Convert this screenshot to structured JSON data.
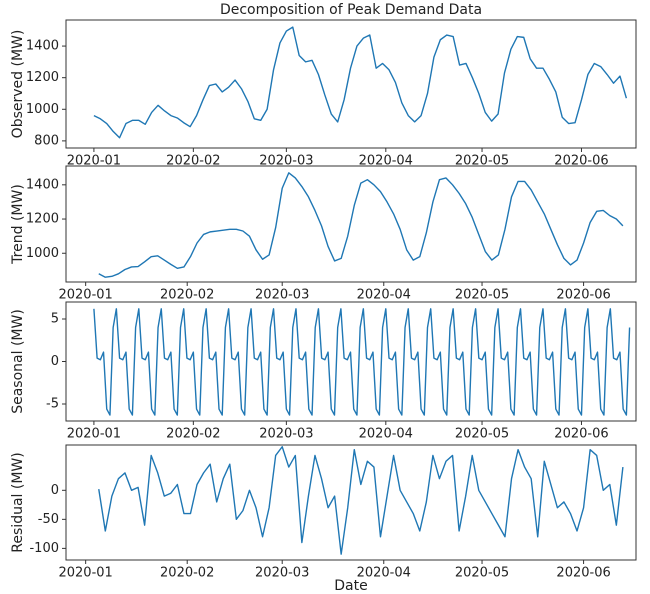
{
  "chart_data": [
    {
      "type": "line",
      "title": "Decomposition of Peak Demand Data",
      "ylabel": "Observed (MW)",
      "color": "#1f77b4",
      "x": [
        0,
        2,
        4,
        6,
        8,
        10,
        12,
        14,
        16,
        18,
        20,
        22,
        24,
        26,
        28,
        30,
        32,
        34,
        36,
        38,
        40,
        42,
        44,
        46,
        48,
        50,
        52,
        54,
        56,
        58,
        60,
        62,
        64,
        66,
        68,
        70,
        72,
        74,
        76,
        78,
        80,
        82,
        84,
        86,
        88,
        90,
        92,
        94,
        96,
        98,
        100,
        102,
        104,
        106,
        108,
        110,
        112,
        114,
        116,
        118,
        120,
        122,
        124,
        126,
        128,
        130,
        132,
        134,
        136,
        138,
        140,
        142,
        144,
        146,
        148,
        150,
        152,
        154,
        156,
        158,
        160,
        162,
        164,
        166
      ],
      "values": [
        960,
        940,
        910,
        860,
        820,
        910,
        930,
        930,
        905,
        980,
        1025,
        990,
        960,
        945,
        915,
        890,
        960,
        1060,
        1150,
        1160,
        1110,
        1140,
        1185,
        1130,
        1050,
        940,
        930,
        1000,
        1250,
        1420,
        1495,
        1520,
        1340,
        1300,
        1310,
        1220,
        1090,
        970,
        920,
        1060,
        1260,
        1400,
        1450,
        1470,
        1260,
        1290,
        1250,
        1170,
        1040,
        960,
        920,
        960,
        1100,
        1330,
        1440,
        1470,
        1460,
        1280,
        1290,
        1200,
        1100,
        980,
        925,
        970,
        1230,
        1380,
        1460,
        1455,
        1320,
        1260,
        1260,
        1190,
        1110,
        950,
        910,
        915,
        1060,
        1220,
        1290,
        1270,
        1220,
        1165,
        1210,
        1070
      ],
      "xlim": [
        -8.7,
        169
      ],
      "ylim": [
        755,
        1565
      ],
      "xticks": [
        {
          "value": 0,
          "label": "2020-01"
        },
        {
          "value": 31,
          "label": "2020-02"
        },
        {
          "value": 60,
          "label": "2020-03"
        },
        {
          "value": 91,
          "label": "2020-04"
        },
        {
          "value": 121,
          "label": "2020-05"
        },
        {
          "value": 152,
          "label": "2020-06"
        }
      ],
      "yticks": [
        800,
        1000,
        1200,
        1400
      ]
    },
    {
      "type": "line",
      "ylabel": "Trend (MW)",
      "color": "#1f77b4",
      "x": [
        0,
        2,
        4,
        6,
        8,
        10,
        12,
        14,
        16,
        18,
        20,
        22,
        24,
        26,
        28,
        30,
        32,
        34,
        36,
        38,
        40,
        42,
        44,
        46,
        48,
        50,
        52,
        54,
        56,
        58,
        60,
        62,
        64,
        66,
        68,
        70,
        72,
        74,
        76,
        78,
        80,
        82,
        84,
        86,
        88,
        90,
        92,
        94,
        96,
        98,
        100,
        102,
        104,
        106,
        108,
        110,
        112,
        114,
        116,
        118,
        120,
        122,
        124,
        126,
        128,
        130,
        132,
        134,
        136,
        138,
        140,
        142,
        144,
        146,
        148,
        150,
        152,
        154,
        156,
        158,
        160,
        162,
        164,
        166
      ],
      "values": [
        null,
        null,
        880,
        860,
        865,
        880,
        905,
        920,
        922,
        950,
        980,
        985,
        960,
        935,
        912,
        920,
        980,
        1060,
        1110,
        1125,
        1130,
        1135,
        1140,
        1140,
        1130,
        1100,
        1020,
        965,
        990,
        1150,
        1380,
        1470,
        1440,
        1390,
        1330,
        1250,
        1160,
        1040,
        955,
        970,
        1100,
        1280,
        1410,
        1430,
        1400,
        1360,
        1300,
        1230,
        1140,
        1020,
        960,
        980,
        1120,
        1300,
        1430,
        1440,
        1400,
        1350,
        1290,
        1210,
        1110,
        1010,
        960,
        990,
        1140,
        1330,
        1420,
        1420,
        1370,
        1300,
        1230,
        1140,
        1050,
        970,
        932,
        960,
        1060,
        1180,
        1245,
        1250,
        1220,
        1200,
        1160,
        null
      ],
      "xlim": [
        -6,
        168
      ],
      "ylim": [
        832,
        1510
      ],
      "xticks": [
        {
          "value": 0,
          "label": "2020-01"
        },
        {
          "value": 31,
          "label": "2020-02"
        },
        {
          "value": 60,
          "label": "2020-03"
        },
        {
          "value": 91,
          "label": "2020-04"
        },
        {
          "value": 121,
          "label": "2020-05"
        },
        {
          "value": 152,
          "label": "2020-06"
        }
      ],
      "yticks": [
        1000,
        1200,
        1400
      ]
    },
    {
      "type": "line",
      "ylabel": "Seasonal (MW)",
      "color": "#1f77b4",
      "x": [
        0,
        1,
        2,
        3,
        4,
        5,
        6,
        7,
        8,
        9,
        10,
        11,
        12,
        13,
        14,
        15,
        16,
        17,
        18,
        19,
        20,
        21,
        22,
        23,
        24,
        25,
        26,
        27,
        28,
        29,
        30,
        31,
        32,
        33,
        34,
        35,
        36,
        37,
        38,
        39,
        40,
        41,
        42,
        43,
        44,
        45,
        46,
        47,
        48,
        49,
        50,
        51,
        52,
        53,
        54,
        55,
        56,
        57,
        58,
        59,
        60,
        61,
        62,
        63,
        64,
        65,
        66,
        67,
        68,
        69,
        70,
        71,
        72,
        73,
        74,
        75,
        76,
        77,
        78,
        79,
        80,
        81,
        82,
        83,
        84,
        85,
        86,
        87,
        88,
        89,
        90,
        91,
        92,
        93,
        94,
        95,
        96,
        97,
        98,
        99,
        100,
        101,
        102,
        103,
        104,
        105,
        106,
        107,
        108,
        109,
        110,
        111,
        112,
        113,
        114,
        115,
        116,
        117,
        118,
        119,
        120,
        121,
        122,
        123,
        124,
        125,
        126,
        127,
        128,
        129,
        130,
        131,
        132,
        133,
        134,
        135,
        136,
        137,
        138,
        139,
        140,
        141,
        142,
        143,
        144,
        145,
        146,
        147,
        148,
        149,
        150,
        151,
        152,
        153,
        154,
        155,
        156,
        157,
        158,
        159,
        160,
        161,
        162,
        163,
        164,
        165,
        166,
        167
      ],
      "values": [
        6.2,
        0.4,
        0.2,
        1.1,
        -5.6,
        -6.3,
        4.0,
        6.2,
        0.4,
        0.2,
        1.1,
        -5.6,
        -6.3,
        4.0,
        6.2,
        0.4,
        0.2,
        1.1,
        -5.6,
        -6.3,
        4.0,
        6.2,
        0.4,
        0.2,
        1.1,
        -5.6,
        -6.3,
        4.0,
        6.2,
        0.4,
        0.2,
        1.1,
        -5.6,
        -6.3,
        4.0,
        6.2,
        0.4,
        0.2,
        1.1,
        -5.6,
        -6.3,
        4.0,
        6.2,
        0.4,
        0.2,
        1.1,
        -5.6,
        -6.3,
        4.0,
        6.2,
        0.4,
        0.2,
        1.1,
        -5.6,
        -6.3,
        4.0,
        6.2,
        0.4,
        0.2,
        1.1,
        -5.6,
        -6.3,
        4.0,
        6.2,
        0.4,
        0.2,
        1.1,
        -5.6,
        -6.3,
        4.0,
        6.2,
        0.4,
        0.2,
        1.1,
        -5.6,
        -6.3,
        4.0,
        6.2,
        0.4,
        0.2,
        1.1,
        -5.6,
        -6.3,
        4.0,
        6.2,
        0.4,
        0.2,
        1.1,
        -5.6,
        -6.3,
        4.0,
        6.2,
        0.4,
        0.2,
        1.1,
        -5.6,
        -6.3,
        4.0,
        6.2,
        0.4,
        0.2,
        1.1,
        -5.6,
        -6.3,
        4.0,
        6.2,
        0.4,
        0.2,
        1.1,
        -5.6,
        -6.3,
        4.0,
        6.2,
        0.4,
        0.2,
        1.1,
        -5.6,
        -6.3,
        4.0,
        6.2,
        0.4,
        0.2,
        1.1,
        -5.6,
        -6.3,
        4.0,
        6.2,
        0.4,
        0.2,
        1.1,
        -5.6,
        -6.3,
        4.0,
        6.2,
        0.4,
        0.2,
        1.1,
        -5.6,
        -6.3,
        4.0,
        6.2,
        0.4,
        0.2,
        1.1,
        -5.6,
        -6.3,
        4.0,
        6.2,
        0.4,
        0.2,
        1.1,
        -5.6,
        -6.3,
        4.0,
        6.2,
        0.4,
        0.2,
        1.1,
        -5.6,
        -6.3,
        4.0,
        6.2,
        0.4,
        0.2,
        1.1,
        -5.6,
        -6.3,
        4.0
      ],
      "xlim": [
        -8.7,
        169
      ],
      "ylim": [
        -7,
        7
      ],
      "xticks": [
        {
          "value": 0,
          "label": "2020-01"
        },
        {
          "value": 31,
          "label": "2020-02"
        },
        {
          "value": 60,
          "label": "2020-03"
        },
        {
          "value": 91,
          "label": "2020-04"
        },
        {
          "value": 121,
          "label": "2020-05"
        },
        {
          "value": 152,
          "label": "2020-06"
        }
      ],
      "yticks": [
        -5,
        0,
        5
      ]
    },
    {
      "type": "line",
      "ylabel": "Residual (MW)",
      "xlabel": "Date",
      "color": "#1f77b4",
      "x": [
        0,
        2,
        4,
        6,
        8,
        10,
        12,
        14,
        16,
        18,
        20,
        22,
        24,
        26,
        28,
        30,
        32,
        34,
        36,
        38,
        40,
        42,
        44,
        46,
        48,
        50,
        52,
        54,
        56,
        58,
        60,
        62,
        64,
        66,
        68,
        70,
        72,
        74,
        76,
        78,
        80,
        82,
        84,
        86,
        88,
        90,
        92,
        94,
        96,
        98,
        100,
        102,
        104,
        106,
        108,
        110,
        112,
        114,
        116,
        118,
        120,
        122,
        124,
        126,
        128,
        130,
        132,
        134,
        136,
        138,
        140,
        142,
        144,
        146,
        148,
        150,
        152,
        154,
        156,
        158,
        160,
        162,
        164,
        166
      ],
      "values": [
        null,
        null,
        2,
        -70,
        -10,
        20,
        30,
        0,
        5,
        -60,
        60,
        30,
        -10,
        -5,
        10,
        -40,
        -40,
        10,
        30,
        45,
        -20,
        20,
        45,
        -50,
        -35,
        0,
        -30,
        -80,
        -30,
        60,
        75,
        40,
        60,
        -90,
        -10,
        60,
        20,
        -30,
        -10,
        -110,
        -30,
        70,
        10,
        50,
        40,
        -80,
        -10,
        60,
        0,
        -20,
        -40,
        -70,
        -20,
        60,
        20,
        50,
        60,
        -70,
        -10,
        60,
        0,
        -20,
        -40,
        -60,
        -80,
        20,
        70,
        40,
        20,
        -80,
        50,
        10,
        -30,
        -20,
        -40,
        -70,
        -30,
        70,
        60,
        0,
        10,
        -60,
        40,
        null
      ],
      "xlim": [
        -6,
        168
      ],
      "ylim": [
        -120,
        78
      ],
      "xticks": [
        {
          "value": 0,
          "label": "2020-01"
        },
        {
          "value": 31,
          "label": "2020-02"
        },
        {
          "value": 60,
          "label": "2020-03"
        },
        {
          "value": 91,
          "label": "2020-04"
        },
        {
          "value": 121,
          "label": "2020-05"
        },
        {
          "value": 152,
          "label": "2020-06"
        }
      ],
      "yticks": [
        -100,
        -50,
        0
      ]
    }
  ]
}
